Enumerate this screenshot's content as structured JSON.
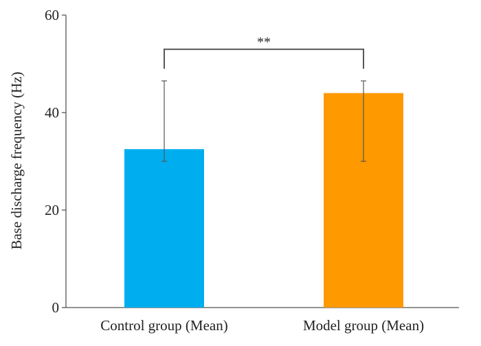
{
  "chart_data": {
    "type": "bar",
    "title": "",
    "xlabel": "",
    "ylabel": "Base discharge frequency (Hz)",
    "ylim": [
      0,
      60
    ],
    "yticks": [
      0,
      20,
      40,
      60
    ],
    "grid": false,
    "categories": [
      "Control group (Mean)",
      "Model group (Mean)"
    ],
    "values": [
      32.5,
      44.0
    ],
    "error_bars": [
      {
        "low": 30.0,
        "high": 46.5
      },
      {
        "low": 30.0,
        "high": 46.5
      }
    ],
    "colors": [
      "#00aeef",
      "#ff9900"
    ],
    "significance": {
      "between": [
        0,
        1
      ],
      "label": "**",
      "y": 53
    }
  }
}
